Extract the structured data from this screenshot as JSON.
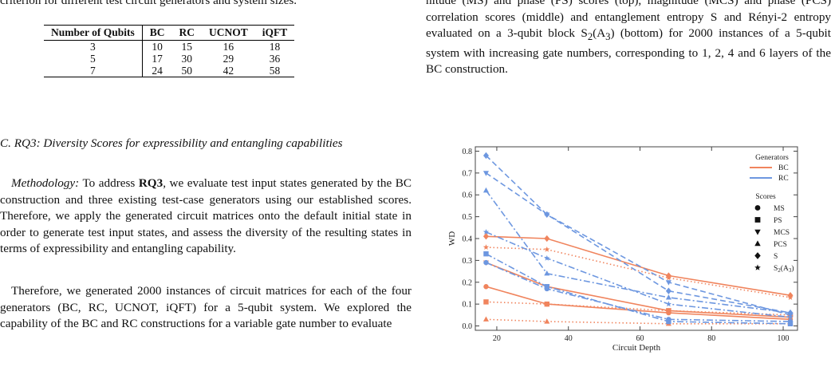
{
  "left_column": {
    "table_caption_tail": "criterion for different test circuit generators and system sizes.",
    "table": {
      "headers": [
        "Number of Qubits",
        "BC",
        "RC",
        "UCNOT",
        "iQFT"
      ],
      "rows": [
        [
          "3",
          "10",
          "15",
          "16",
          "18"
        ],
        [
          "5",
          "17",
          "30",
          "29",
          "36"
        ],
        [
          "7",
          "24",
          "50",
          "42",
          "58"
        ]
      ]
    },
    "section_heading": "C.  RQ3: Diversity Scores for expressibility and entangling capabilities",
    "para1_lead": "Methodology:",
    "para1_a": " To address ",
    "para1_bold": "RQ3",
    "para1_b": ", we evaluate test input states generated by the BC construction and three existing test-case generators using our established scores. Therefore, we apply the generated circuit matrices onto the default initial state in order to generate test input states, and assess the diversity of the resulting states in terms of expressibility and entangling capability.",
    "para2": "Therefore, we generated 2000 instances of circuit matrices for each of the four generators (BC, RC, UCNOT, iQFT) for a 5-qubit system. We explored the capability of the BC and RC constructions for a variable gate number to evaluate"
  },
  "right_column": {
    "caption_line1": "nitude (MS) and phase (PS) scores (top), magnitude (MCS)",
    "caption_line2": "and phase (PCS) correlation scores (middle) and entanglement",
    "caption_line3": "entropy S and Rényi-2 entropy evaluated on a 3-qubit block",
    "caption_line4_a": "S",
    "caption_line4_b": "(A",
    "caption_line4_c": ") (bottom) for 2000 instances of a 5-qubit system with",
    "caption_line5": "increasing gate numbers, corresponding to 1, 2, 4 and 6 layers",
    "caption_line6": "of the BC construction."
  },
  "chart_data": {
    "type": "line",
    "xlabel": "Circuit Depth",
    "ylabel": "WD",
    "xlim": [
      14,
      104
    ],
    "ylim": [
      -0.02,
      0.82
    ],
    "xticks": [
      20,
      40,
      60,
      80,
      100
    ],
    "yticks": [
      0.0,
      0.1,
      0.2,
      0.3,
      0.4,
      0.5,
      0.6,
      0.7,
      0.8
    ],
    "legend_generators_title": "Generators",
    "legend_scores_title": "Scores",
    "generators": [
      {
        "name": "BC",
        "color": "#f0845d"
      },
      {
        "name": "RC",
        "color": "#6d97e0"
      }
    ],
    "scores": [
      {
        "name": "MS",
        "marker": "circle"
      },
      {
        "name": "PS",
        "marker": "square"
      },
      {
        "name": "MCS",
        "marker": "triangle-down"
      },
      {
        "name": "PCS",
        "marker": "triangle-up"
      },
      {
        "name": "S",
        "marker": "diamond"
      },
      {
        "name": "S2(A3)",
        "marker": "star"
      }
    ],
    "legend_placement": "right",
    "grid": false,
    "series": [
      {
        "generator": "BC",
        "score": "MS",
        "style": "solid",
        "x": [
          17,
          34,
          68,
          102
        ],
        "y": [
          0.18,
          0.1,
          0.06,
          0.03
        ]
      },
      {
        "generator": "BC",
        "score": "PS",
        "style": "dotted",
        "x": [
          17,
          34,
          68,
          102
        ],
        "y": [
          0.11,
          0.1,
          0.07,
          0.05
        ]
      },
      {
        "generator": "BC",
        "score": "MCS",
        "style": "solid",
        "x": [
          17,
          34,
          68,
          102
        ],
        "y": [
          0.29,
          0.18,
          0.07,
          0.04
        ]
      },
      {
        "generator": "BC",
        "score": "PCS",
        "style": "dotted",
        "x": [
          17,
          34,
          68,
          102
        ],
        "y": [
          0.03,
          0.02,
          0.01,
          0.01
        ]
      },
      {
        "generator": "BC",
        "score": "S",
        "style": "solid",
        "x": [
          17,
          34,
          68,
          102
        ],
        "y": [
          0.41,
          0.4,
          0.23,
          0.14
        ]
      },
      {
        "generator": "BC",
        "score": "S2(A3)",
        "style": "dotted",
        "x": [
          17,
          34,
          68,
          102
        ],
        "y": [
          0.36,
          0.35,
          0.22,
          0.13
        ]
      },
      {
        "generator": "RC",
        "score": "MS",
        "style": "dashdot",
        "x": [
          17,
          34,
          68,
          102
        ],
        "y": [
          0.29,
          0.17,
          0.03,
          0.02
        ]
      },
      {
        "generator": "RC",
        "score": "PS",
        "style": "dashdot",
        "x": [
          17,
          34,
          68,
          102
        ],
        "y": [
          0.33,
          0.18,
          0.02,
          0.01
        ]
      },
      {
        "generator": "RC",
        "score": "MCS",
        "style": "dashed",
        "x": [
          17,
          34,
          68,
          102
        ],
        "y": [
          0.7,
          0.51,
          0.2,
          0.05
        ]
      },
      {
        "generator": "RC",
        "score": "PCS",
        "style": "dashdot",
        "x": [
          17,
          34,
          68,
          102
        ],
        "y": [
          0.62,
          0.24,
          0.13,
          0.06
        ]
      },
      {
        "generator": "RC",
        "score": "S",
        "style": "dashed",
        "x": [
          17,
          34,
          68,
          102
        ],
        "y": [
          0.78,
          0.51,
          0.16,
          0.06
        ]
      },
      {
        "generator": "RC",
        "score": "S2(A3)",
        "style": "dashdot",
        "x": [
          17,
          34,
          68,
          102
        ],
        "y": [
          0.43,
          0.31,
          0.1,
          0.04
        ]
      }
    ]
  }
}
